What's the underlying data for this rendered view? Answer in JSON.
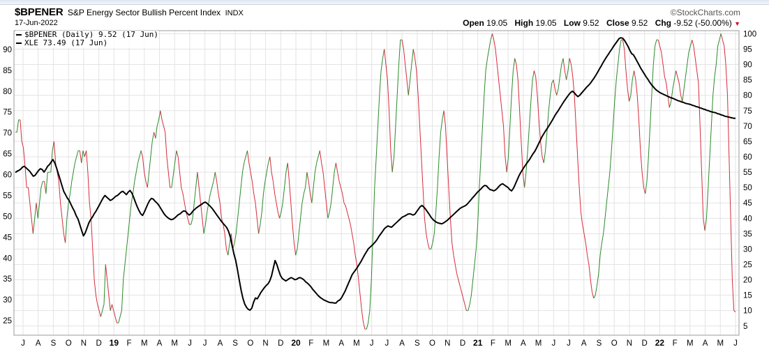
{
  "header": {
    "symbol": "$BPENER",
    "name": "S&P Energy Sector Bullish Percent Index",
    "exchange": "INDX",
    "brand": "©StockCharts.com",
    "date": "17-Jun-2022",
    "open_label": "Open",
    "open_value": "19.05",
    "high_label": "High",
    "high_value": "19.05",
    "low_label": "Low",
    "low_value": "9.52",
    "close_label": "Close",
    "close_value": "9.52",
    "chg_label": "Chg",
    "chg_value": "-9.52 (-50.00%)",
    "chg_arrow": "▼",
    "down_color": "#c8102e"
  },
  "legend": {
    "bp_label": "$BPENER (Daily) 9.52 (17 Jun)",
    "xle_label": "XLE 73.49 (17 Jun)"
  },
  "chart_data": {
    "type": "line",
    "x_labels": [
      "J",
      "A",
      "S",
      "O",
      "N",
      "D",
      "19",
      "F",
      "M",
      "A",
      "M",
      "J",
      "J",
      "A",
      "S",
      "O",
      "N",
      "D",
      "20",
      "F",
      "M",
      "A",
      "M",
      "J",
      "J",
      "A",
      "S",
      "O",
      "N",
      "D",
      "21",
      "F",
      "M",
      "A",
      "M",
      "J",
      "J",
      "A",
      "S",
      "O",
      "N",
      "D",
      "22",
      "F",
      "M",
      "A",
      "M",
      "J"
    ],
    "bold_labels": [
      "19",
      "20",
      "21",
      "22"
    ],
    "right_axis": {
      "ticks": [
        5,
        10,
        15,
        20,
        25,
        30,
        35,
        40,
        45,
        50,
        55,
        60,
        65,
        70,
        75,
        80,
        85,
        90,
        95,
        100
      ],
      "ylim": [
        2,
        101
      ]
    },
    "left_axis": {
      "ticks": [
        25,
        30,
        35,
        40,
        45,
        50,
        55,
        60,
        65,
        70,
        75,
        80,
        85,
        90
      ],
      "ylim": [
        21.5,
        94.5
      ]
    },
    "up_color": "#2a8a2a",
    "down_color": "#d62a3c",
    "xle_color": "#000000",
    "series": [
      {
        "name": "$BPENER",
        "axis": "right",
        "values": [
          68,
          68,
          72,
          72,
          65,
          63,
          57,
          50,
          50,
          45,
          40,
          35,
          40,
          45,
          40,
          45,
          50,
          52,
          52,
          48,
          55,
          55,
          55,
          62,
          65,
          58,
          55,
          52,
          45,
          40,
          35,
          32,
          40,
          45,
          48,
          52,
          55,
          58,
          60,
          62,
          62,
          58,
          62,
          60,
          62,
          55,
          45,
          40,
          30,
          20,
          15,
          12,
          10,
          8,
          10,
          12,
          25,
          20,
          15,
          10,
          12,
          10,
          8,
          6,
          6,
          8,
          10,
          20,
          25,
          30,
          35,
          40,
          45,
          48,
          52,
          55,
          58,
          60,
          62,
          60,
          55,
          52,
          50,
          55,
          60,
          65,
          68,
          66,
          70,
          72,
          75,
          72,
          70,
          68,
          60,
          55,
          50,
          50,
          54,
          58,
          62,
          60,
          55,
          50,
          48,
          45,
          42,
          40,
          38,
          38,
          40,
          45,
          50,
          55,
          50,
          45,
          40,
          35,
          38,
          42,
          45,
          48,
          50,
          52,
          55,
          52,
          48,
          45,
          40,
          38,
          35,
          30,
          28,
          32,
          35,
          30,
          32,
          35,
          40,
          45,
          50,
          55,
          58,
          60,
          62,
          58,
          55,
          52,
          48,
          45,
          40,
          35,
          38,
          42,
          48,
          52,
          55,
          58,
          60,
          55,
          52,
          48,
          45,
          42,
          40,
          42,
          45,
          50,
          55,
          58,
          52,
          45,
          38,
          32,
          28,
          30,
          35,
          40,
          45,
          48,
          50,
          55,
          52,
          48,
          45,
          50,
          55,
          58,
          60,
          62,
          58,
          55,
          50,
          45,
          40,
          42,
          45,
          50,
          55,
          58,
          55,
          52,
          50,
          48,
          45,
          44,
          42,
          40,
          38,
          35,
          32,
          28,
          25,
          20,
          15,
          10,
          6,
          4,
          4,
          6,
          10,
          20,
          35,
          50,
          60,
          70,
          80,
          88,
          92,
          95,
          90,
          85,
          75,
          62,
          55,
          60,
          70,
          80,
          90,
          98,
          98,
          95,
          90,
          85,
          80,
          85,
          90,
          95,
          92,
          88,
          80,
          70,
          60,
          50,
          40,
          35,
          32,
          30,
          30,
          32,
          35,
          42,
          50,
          60,
          68,
          72,
          75,
          70,
          60,
          50,
          40,
          32,
          28,
          25,
          22,
          20,
          18,
          16,
          14,
          12,
          10,
          10,
          12,
          15,
          20,
          25,
          30,
          38,
          50,
          60,
          70,
          80,
          88,
          92,
          95,
          98,
          100,
          98,
          95,
          90,
          85,
          80,
          75,
          70,
          60,
          55,
          60,
          70,
          80,
          88,
          92,
          90,
          85,
          75,
          65,
          55,
          50,
          55,
          62,
          70,
          78,
          85,
          88,
          86,
          80,
          72,
          65,
          60,
          58,
          62,
          68,
          75,
          80,
          84,
          85,
          82,
          80,
          82,
          86,
          90,
          92,
          88,
          85,
          88,
          92,
          90,
          86,
          80,
          70,
          60,
          50,
          42,
          38,
          35,
          32,
          28,
          25,
          20,
          16,
          14,
          15,
          18,
          22,
          28,
          32,
          35,
          40,
          45,
          50,
          55,
          62,
          70,
          78,
          85,
          90,
          95,
          98,
          98,
          95,
          88,
          82,
          78,
          80,
          85,
          88,
          85,
          80,
          72,
          62,
          55,
          50,
          48,
          52,
          60,
          70,
          80,
          90,
          96,
          98,
          98,
          96,
          94,
          90,
          86,
          84,
          80,
          76,
          78,
          82,
          85,
          88,
          86,
          84,
          80,
          78,
          82,
          86,
          90,
          94,
          96,
          98,
          96,
          92,
          88,
          84,
          70,
          55,
          40,
          36,
          40,
          50,
          60,
          70,
          80,
          86,
          90,
          96,
          98,
          100,
          98,
          96,
          90,
          80,
          60,
          40,
          20,
          10,
          9.52
        ]
      },
      {
        "name": "XLE",
        "axis": "left",
        "values": [
          60.5,
          60.8,
          61,
          61.3,
          61.8,
          62,
          61.6,
          61.2,
          60.8,
          60.2,
          59.6,
          59.8,
          60.4,
          61,
          61.4,
          61.2,
          60.6,
          61.2,
          62,
          62.4,
          63,
          63.6,
          62.8,
          61.6,
          60.2,
          58.8,
          57.4,
          56,
          55.2,
          54.4,
          53.8,
          52.9,
          52,
          51.2,
          50.1,
          49.3,
          48,
          46.6,
          45.3,
          46,
          47.2,
          48.4,
          49.2,
          49.8,
          50.6,
          51.2,
          52,
          52.8,
          53.6,
          54.4,
          55,
          54.6,
          54.2,
          53.8,
          54,
          54.4,
          54.8,
          55,
          55.4,
          55.8,
          56,
          55.6,
          55.2,
          55.8,
          56.2,
          55.6,
          54.6,
          53.4,
          52.3,
          51.4,
          50.6,
          50.2,
          51,
          52,
          53,
          53.8,
          54.3,
          54.1,
          53.6,
          53.2,
          52.7,
          52,
          51.3,
          50.6,
          50.1,
          49.7,
          49.4,
          49.2,
          49.3,
          49.6,
          50,
          50.4,
          50.6,
          51,
          51.3,
          51.2,
          50.7,
          50.3,
          50.6,
          51.2,
          51.6,
          52,
          52.3,
          52.6,
          52.9,
          53.2,
          53.4,
          53.1,
          52.7,
          52.3,
          51.8,
          51.2,
          50.6,
          50,
          49.4,
          48.8,
          48.3,
          47.8,
          47.3,
          46.4,
          45,
          43,
          41,
          39.4,
          37.2,
          34.7,
          32.3,
          30.4,
          29,
          28.2,
          27.7,
          27.5,
          28,
          29.4,
          30.4,
          30.2,
          30.9,
          31.7,
          32.3,
          32.9,
          33.4,
          33.8,
          34.5,
          35.7,
          37.6,
          39.4,
          38.4,
          37,
          35.8,
          35.1,
          34.8,
          34.5,
          34.8,
          35.1,
          35.3,
          35.1,
          34.8,
          34.9,
          35.2,
          35.3,
          35.1,
          34.8,
          34.3,
          34,
          33.6,
          33.1,
          32.5,
          32,
          31.5,
          31,
          30.6,
          30.3,
          30,
          29.8,
          29.6,
          29.4,
          29.3,
          29.3,
          29.2,
          29.2,
          29.7,
          29.9,
          30.4,
          31.2,
          32,
          33,
          34,
          35,
          36,
          36.6,
          37.2,
          37.8,
          38.5,
          39.2,
          40,
          40.8,
          41.5,
          42.2,
          42.6,
          43,
          43.4,
          43.9,
          44.5,
          45.2,
          45.8,
          46.4,
          47,
          47.4,
          47.7,
          47.5,
          47.4,
          47.8,
          48.2,
          48.6,
          49,
          49.4,
          49.8,
          50,
          50.2,
          50.5,
          50.6,
          50.5,
          50.3,
          50.5,
          51.1,
          51.7,
          52.3,
          52.6,
          52.2,
          51.7,
          51.1,
          50.5,
          49.8,
          49.3,
          48.9,
          48.6,
          48.4,
          48.3,
          48.2,
          48.4,
          48.7,
          49,
          49.4,
          49.8,
          50.2,
          50.6,
          51,
          51.4,
          51.8,
          52.1,
          52.3,
          52.5,
          52.8,
          53.3,
          53.8,
          54.3,
          54.8,
          55.3,
          55.8,
          56.2,
          56.6,
          57.1,
          57.4,
          57.3,
          56.8,
          56.4,
          56.3,
          56.1,
          56.3,
          56.7,
          57.2,
          57.6,
          57.8,
          57.5,
          57.2,
          56.9,
          56.4,
          56.1,
          56.7,
          57.6,
          58.6,
          59.6,
          60.4,
          61.1,
          61.8,
          62.4,
          63,
          63.6,
          64.3,
          65,
          65.6,
          66.4,
          67.3,
          68.2,
          69.1,
          69.8,
          70.5,
          71.1,
          71.8,
          72.5,
          73.2,
          74,
          74.7,
          75.3,
          76,
          76.7,
          77.4,
          78,
          78.6,
          79.2,
          79.7,
          80,
          79.6,
          79.1,
          78.7,
          79,
          79.5,
          80,
          80.5,
          81,
          81.4,
          81.9,
          82.5,
          83.1,
          83.8,
          84.5,
          85.3,
          86,
          86.8,
          87.5,
          88.2,
          88.8,
          89.5,
          90.1,
          90.8,
          91.4,
          92,
          92.6,
          92.8,
          92.7,
          92.2,
          91.5,
          90.7,
          89.8,
          89,
          88.7,
          88,
          87.2,
          86.4,
          85.6,
          84.9,
          84.2,
          83.5,
          82.9,
          82.2,
          81.6,
          81.1,
          80.6,
          80.2,
          79.9,
          79.6,
          79.4,
          79.2,
          79,
          78.8,
          78.6,
          78.4,
          78.3,
          78.1,
          77.9,
          77.7,
          77.6,
          77.4,
          77.3,
          77.1,
          77,
          76.9,
          76.8,
          76.6,
          76.5,
          76.3,
          76.2,
          76,
          75.9,
          75.7,
          75.6,
          75.4,
          75.3,
          75.1,
          75,
          74.9,
          74.8,
          74.6,
          74.5,
          74.3,
          74.2,
          74,
          73.9,
          73.8,
          73.7,
          73.6,
          73.5,
          73.49
        ]
      }
    ]
  }
}
